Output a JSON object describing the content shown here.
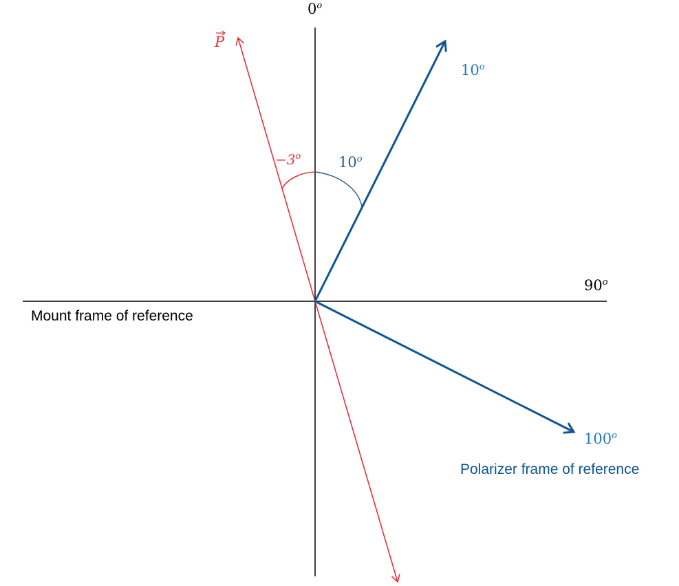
{
  "axes": {
    "zero_label_base": "0",
    "zero_label_sup": "o",
    "ninety_label_base": "90",
    "ninety_label_sup": "o"
  },
  "mount_frame": {
    "caption": "Mount frame of reference",
    "color": "#000000"
  },
  "polarizer_frame": {
    "caption": "Polarizer frame of reference",
    "axis1_label_base": "10",
    "axis1_label_sup": "o",
    "axis2_label_base": "100",
    "axis2_label_sup": "o",
    "color": "#0D5595",
    "label_color": "#1F78C0"
  },
  "polarization": {
    "vector_label": "P",
    "angle_label_base": "−3",
    "angle_label_sup": "o",
    "color": "#E8303A"
  },
  "rotation_angle": {
    "label_base": "10",
    "label_sup": "o",
    "color": "#2E5C86"
  }
}
